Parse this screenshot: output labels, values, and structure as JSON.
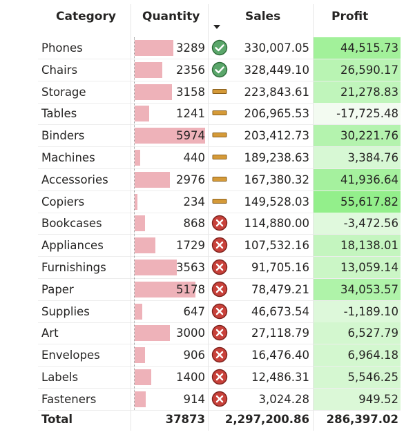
{
  "table": {
    "headers": {
      "category": "Category",
      "quantity": "Quantity",
      "sales": "Sales",
      "profit": "Profit"
    },
    "sort": {
      "column": "Sales",
      "direction": "descending",
      "icon": "sort-descending-icon"
    },
    "total": {
      "label": "Total",
      "quantity": "37873",
      "sales": "2,297,200.86",
      "profit": "286,397.02"
    },
    "rows": [
      {
        "category": "Phones",
        "quantity": "3289",
        "status": "good",
        "sales": "330,007.05",
        "profit": "44,515.73"
      },
      {
        "category": "Chairs",
        "quantity": "2356",
        "status": "good",
        "sales": "328,449.10",
        "profit": "26,590.17"
      },
      {
        "category": "Storage",
        "quantity": "3158",
        "status": "neutral",
        "sales": "223,843.61",
        "profit": "21,278.83"
      },
      {
        "category": "Tables",
        "quantity": "1241",
        "status": "neutral",
        "sales": "206,965.53",
        "profit": "-17,725.48"
      },
      {
        "category": "Binders",
        "quantity": "5974",
        "status": "neutral",
        "sales": "203,412.73",
        "profit": "30,221.76"
      },
      {
        "category": "Machines",
        "quantity": "440",
        "status": "neutral",
        "sales": "189,238.63",
        "profit": "3,384.76"
      },
      {
        "category": "Accessories",
        "quantity": "2976",
        "status": "neutral",
        "sales": "167,380.32",
        "profit": "41,936.64"
      },
      {
        "category": "Copiers",
        "quantity": "234",
        "status": "neutral",
        "sales": "149,528.03",
        "profit": "55,617.82"
      },
      {
        "category": "Bookcases",
        "quantity": "868",
        "status": "bad",
        "sales": "114,880.00",
        "profit": "-3,472.56"
      },
      {
        "category": "Appliances",
        "quantity": "1729",
        "status": "bad",
        "sales": "107,532.16",
        "profit": "18,138.01"
      },
      {
        "category": "Furnishings",
        "quantity": "3563",
        "status": "bad",
        "sales": "91,705.16",
        "profit": "13,059.14"
      },
      {
        "category": "Paper",
        "quantity": "5178",
        "status": "bad",
        "sales": "78,479.21",
        "profit": "34,053.57"
      },
      {
        "category": "Supplies",
        "quantity": "647",
        "status": "bad",
        "sales": "46,673.54",
        "profit": "-1,189.10"
      },
      {
        "category": "Art",
        "quantity": "3000",
        "status": "bad",
        "sales": "27,118.79",
        "profit": "6,527.79"
      },
      {
        "category": "Envelopes",
        "quantity": "906",
        "status": "bad",
        "sales": "16,476.40",
        "profit": "6,964.18"
      },
      {
        "category": "Labels",
        "quantity": "1400",
        "status": "bad",
        "sales": "12,486.31",
        "profit": "5,546.25"
      },
      {
        "category": "Fasteners",
        "quantity": "914",
        "status": "bad",
        "sales": "3,024.28",
        "profit": "949.52"
      }
    ]
  },
  "colors": {
    "quantity_bar": "#eeb2b9",
    "good_icon": "#5aa66a",
    "neutral_icon": "#d59a38",
    "bad_icon": "#c8413a",
    "profit_low": "#f3fbf1",
    "profit_high": "#93ef8b",
    "grid_line": "#e6e6e6"
  },
  "icons": {
    "good": "check-circle-icon",
    "neutral": "dash-bar-icon",
    "bad": "x-circle-icon"
  },
  "chart_data": {
    "type": "table",
    "columns": [
      "Category",
      "Quantity",
      "Sales",
      "Profit"
    ],
    "categories": [
      "Phones",
      "Chairs",
      "Storage",
      "Tables",
      "Binders",
      "Machines",
      "Accessories",
      "Copiers",
      "Bookcases",
      "Appliances",
      "Furnishings",
      "Paper",
      "Supplies",
      "Art",
      "Envelopes",
      "Labels",
      "Fasteners"
    ],
    "series": [
      {
        "name": "Quantity",
        "values": [
          3289,
          2356,
          3158,
          1241,
          5974,
          440,
          2976,
          234,
          868,
          1729,
          3563,
          5178,
          647,
          3000,
          906,
          1400,
          914
        ]
      },
      {
        "name": "Sales",
        "values": [
          330007.05,
          328449.1,
          223843.61,
          206965.53,
          203412.73,
          189238.63,
          167380.32,
          149528.03,
          114880.0,
          107532.16,
          91705.16,
          78479.21,
          46673.54,
          27118.79,
          16476.4,
          12486.31,
          3024.28
        ]
      },
      {
        "name": "Profit",
        "values": [
          44515.73,
          26590.17,
          21278.83,
          -17725.48,
          30221.76,
          3384.76,
          41936.64,
          55617.82,
          -3472.56,
          18138.01,
          13059.14,
          34053.57,
          -1189.1,
          6527.79,
          6964.18,
          5546.25,
          949.52
        ]
      }
    ],
    "totals": {
      "Quantity": 37873,
      "Sales": 2297200.86,
      "Profit": 286397.02
    }
  }
}
